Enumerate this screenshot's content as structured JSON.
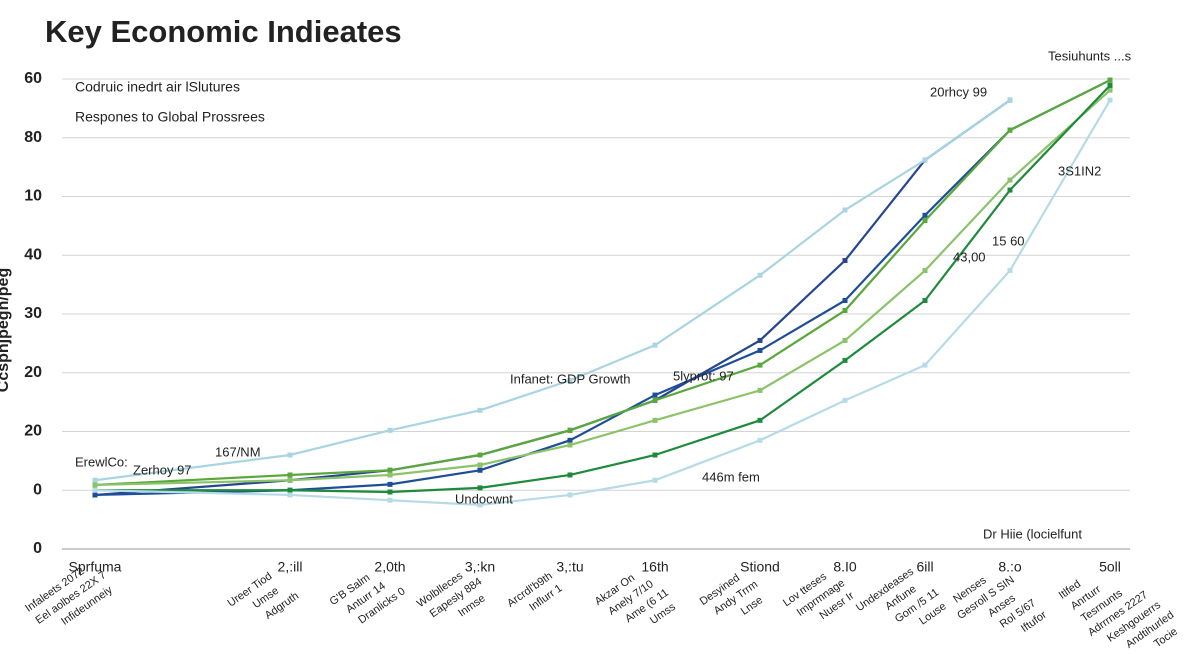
{
  "chart_data": {
    "type": "line",
    "title": "Key Economic Indieates",
    "subtitle": [
      "Codruic inedrt air lSlutures",
      "Respones to Global Prossrees"
    ],
    "y_label": "Ccsphjpegh/peg",
    "categories": [
      "Sprfuma",
      "2,:ill",
      "2,0th",
      "3,:kn",
      "3,:tu",
      "16th",
      "Stiond",
      "8.I0",
      "6ill",
      "8.:o",
      "5oll"
    ],
    "x_sublabels": [
      [
        "Infaleets 2072",
        "Eel aolbes 22X 7",
        "Infideunneiy"
      ],
      [
        "Ureer Tiod",
        "Umse",
        "Adgruth"
      ],
      [
        "G'B Salm",
        "Anturr 14",
        "Dranlicks 0"
      ],
      [
        "Wolblleces",
        "Eapesly 884",
        "Inmse"
      ],
      [
        "Arcrdl'b9th",
        "Influrr 1"
      ],
      [
        "Akzar On",
        "Anely 7/10",
        "Ame (6 11",
        "Umss"
      ],
      [
        "Desyined",
        "Andy Trrm",
        "Lnse"
      ],
      [
        "Lov tteses",
        "Imprmnage",
        "Nuesr Ir"
      ],
      [
        "Undexdeases",
        "Anfune",
        "Gom /5 11",
        "Louse"
      ],
      [
        "Nenses",
        "Gesroll S SIN",
        "Anses",
        "Rol 5/67",
        "Iftufor"
      ],
      [
        "Itlfed",
        "Anrturr",
        "Tesrnunts",
        "Adrrrnes 2227",
        "Keshgouerrs",
        "Andtihurled",
        "Tocie"
      ]
    ],
    "ylim": [
      -10,
      70
    ],
    "yticks": [
      {
        "value": -10,
        "label": "0"
      },
      {
        "value": 0,
        "label": "0"
      },
      {
        "value": 10,
        "label": "20"
      },
      {
        "value": 20,
        "label": "20"
      },
      30,
      40,
      {
        "value": 50,
        "label": "10"
      },
      {
        "value": 60,
        "label": "80"
      },
      {
        "value": 70,
        "label": "60"
      }
    ],
    "grid": true,
    "series": [
      {
        "color": "#27468f",
        "values": [
          -0.8,
          1.7,
          3.4,
          6.0,
          10.2,
          15.3,
          25.5,
          39.1,
          56.2,
          66.4,
          null
        ]
      },
      {
        "color": "#a9d4e2",
        "values": [
          1.7,
          6.0,
          10.2,
          13.6,
          18.7,
          24.7,
          36.6,
          47.7,
          56.2,
          66.4,
          null
        ]
      },
      {
        "color": "#1f4e99",
        "values": [
          -0.8,
          0.0,
          1.0,
          3.4,
          8.5,
          16.2,
          23.8,
          32.3,
          46.8,
          61.3,
          69.8
        ]
      },
      {
        "color": "#5aa83c",
        "values": [
          0.9,
          2.6,
          3.4,
          6.0,
          10.2,
          15.3,
          21.3,
          30.6,
          45.9,
          61.3,
          69.8
        ]
      },
      {
        "color": "#8cc36a",
        "values": [
          0.9,
          1.7,
          2.6,
          4.3,
          7.7,
          11.9,
          17.0,
          25.5,
          37.4,
          52.8,
          68.1
        ]
      },
      {
        "color": "#1e8a3c",
        "values": [
          0.0,
          0.0,
          -0.3,
          0.4,
          2.6,
          6.0,
          11.9,
          22.1,
          32.3,
          51.1,
          68.9
        ]
      },
      {
        "color": "#b5dbe6",
        "values": [
          0.0,
          -0.8,
          -1.7,
          -2.5,
          -0.8,
          1.7,
          8.5,
          15.3,
          21.3,
          37.4,
          66.4
        ]
      }
    ],
    "annotations": [
      "Tesiuhunts ...s",
      "20rhcy 99",
      "3S1IN2",
      "15 60",
      "43,00",
      "Infanet:  GDP Growth",
      "5lyprot: 97",
      "167/NM",
      "Zerhoy 97",
      "ErewlCo:",
      "446m fem",
      "Undocwnt",
      "Dr Hiie (locielfunt"
    ]
  }
}
